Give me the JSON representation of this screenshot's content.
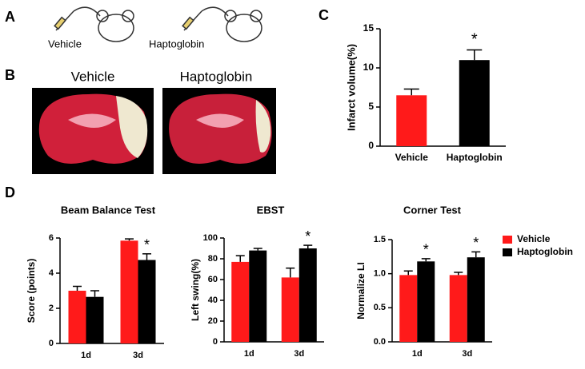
{
  "figure": {
    "panel_labels": [
      "A",
      "B",
      "C",
      "D"
    ],
    "panel_a_labels": [
      "Vehicle",
      "Haptoglobin"
    ],
    "panel_b_labels": [
      "Vehicle",
      "Haptoglobin"
    ]
  },
  "chart_data": [
    {
      "type": "bar",
      "categories": [
        "Vehicle",
        "Haptoglobin"
      ],
      "values": [
        6.5,
        11
      ],
      "errors": [
        0.8,
        1.3
      ],
      "colors": [
        "#ff1a1a",
        "#000000"
      ],
      "annotations": [
        null,
        "*"
      ],
      "y_label": "Infarct volume(%)",
      "ylim": [
        0,
        15
      ],
      "yticks": [
        0,
        5,
        10,
        15
      ]
    },
    {
      "type": "grouped_bar",
      "title": "Beam Balance Test",
      "categories": [
        "1d",
        "3d"
      ],
      "y_label": "Score (points)",
      "ylim": [
        0,
        6
      ],
      "yticks": [
        0,
        2,
        4,
        6
      ],
      "series": [
        {
          "color": "#ff1a1a",
          "values": [
            3.0,
            5.85
          ],
          "errors": [
            0.25,
            0.1
          ],
          "annotations": [
            null,
            null
          ]
        },
        {
          "color": "#000000",
          "values": [
            2.65,
            4.75
          ],
          "errors": [
            0.35,
            0.35
          ],
          "annotations": [
            null,
            "*"
          ]
        }
      ]
    },
    {
      "type": "grouped_bar",
      "title": "EBST",
      "categories": [
        "1d",
        "3d"
      ],
      "y_label": "Left swing(%)",
      "ylim": [
        0,
        100
      ],
      "yticks": [
        0,
        20,
        40,
        60,
        80,
        100
      ],
      "series": [
        {
          "color": "#ff1a1a",
          "values": [
            77,
            62
          ],
          "errors": [
            6,
            9
          ],
          "annotations": [
            null,
            null
          ]
        },
        {
          "color": "#000000",
          "values": [
            88,
            90
          ],
          "errors": [
            2,
            3
          ],
          "annotations": [
            null,
            "*"
          ]
        }
      ]
    },
    {
      "type": "grouped_bar",
      "title": "Corner Test",
      "categories": [
        "1d",
        "3d"
      ],
      "y_label": "Normalize LI",
      "ylim": [
        0,
        1.5
      ],
      "yticks": [
        {
          "value": 0,
          "label": "0.0"
        },
        0.5,
        {
          "value": 1,
          "label": "1.0"
        },
        1.5
      ],
      "legend": "right",
      "series": [
        {
          "name": "Vehicle",
          "color": "#ff1a1a",
          "values": [
            0.98,
            0.98
          ],
          "errors": [
            0.06,
            0.04
          ],
          "annotations": [
            null,
            null
          ]
        },
        {
          "name": "Haptoglobin",
          "color": "#000000",
          "values": [
            1.18,
            1.24
          ],
          "errors": [
            0.04,
            0.08
          ],
          "annotations": [
            "*",
            "*"
          ]
        }
      ]
    }
  ]
}
